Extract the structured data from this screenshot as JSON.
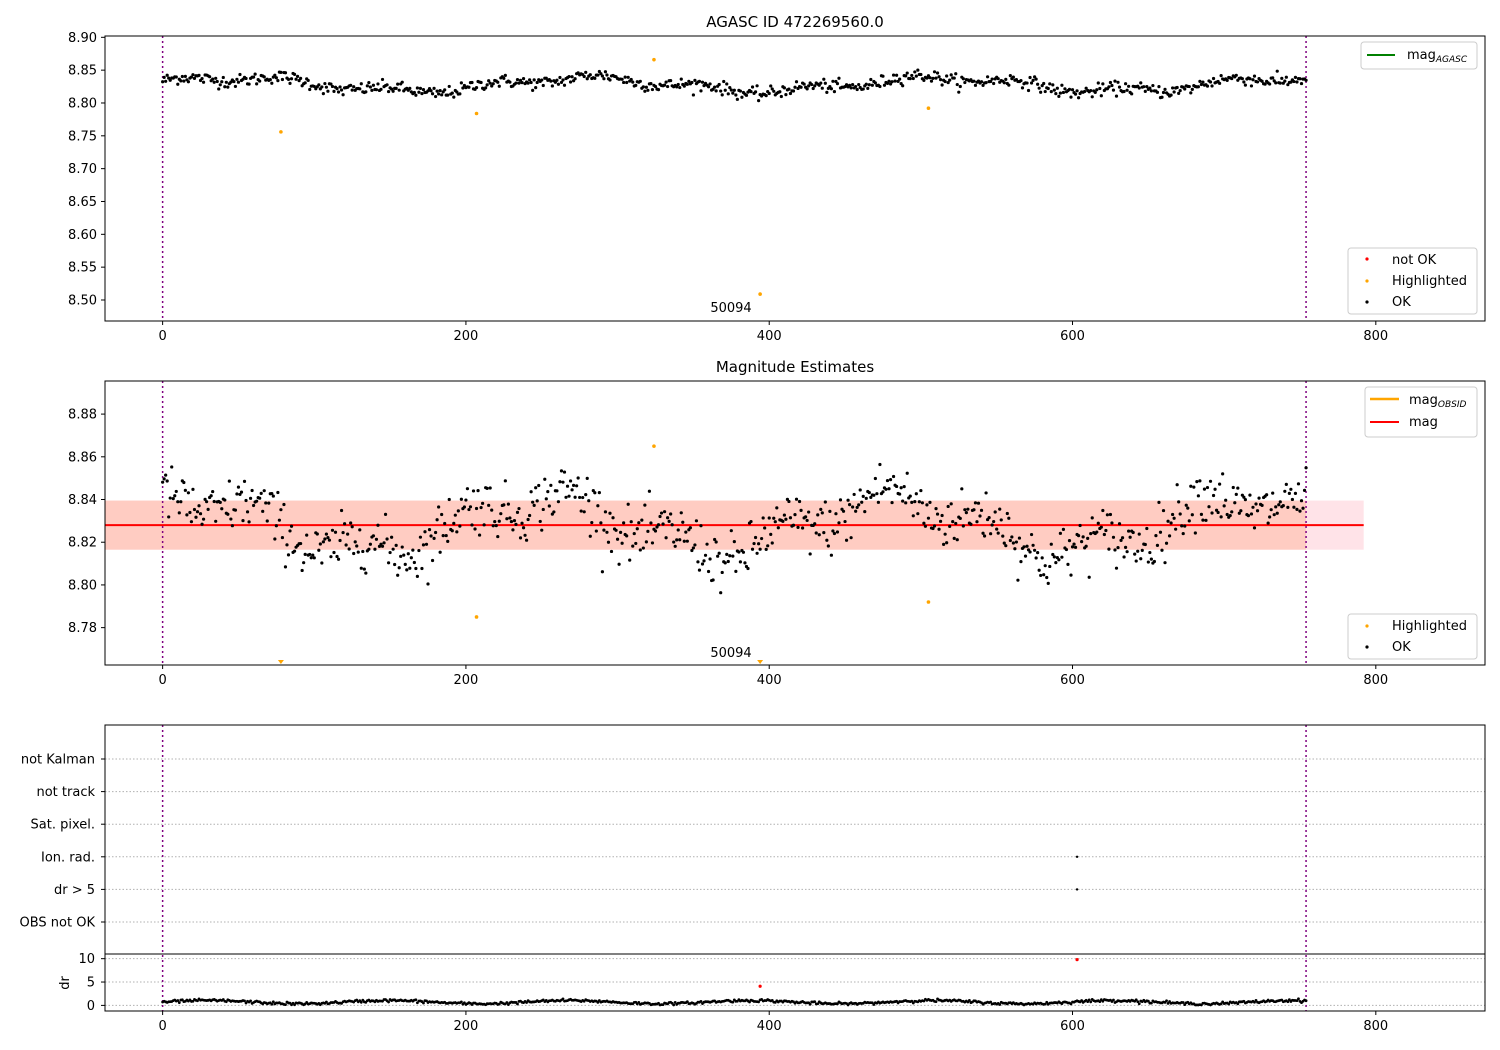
{
  "figure": {
    "colors": {
      "ok": "#000000",
      "highlighted": "#ffa500",
      "not_ok": "#ff0000",
      "mag_line": "#ff0000",
      "mag_obsid_line": "#ffa500",
      "mag_agasc_line": "#008000",
      "band_outer": "#ffc0cb",
      "band_inner": "#ffa07a",
      "boundary": "#800080"
    }
  },
  "chart_data": [
    {
      "type": "scatter",
      "title": "AGASC ID 472269560.0",
      "xlim": [
        -38,
        872
      ],
      "ylim": [
        8.468,
        8.902
      ],
      "xticks": [
        0,
        200,
        400,
        600,
        800
      ],
      "yticks": [
        8.5,
        8.55,
        8.6,
        8.65,
        8.7,
        8.75,
        8.8,
        8.85,
        8.9
      ],
      "vlines": [
        0,
        754
      ],
      "annotation": {
        "text": "50094",
        "x": 394,
        "y": 8.49
      },
      "legend_lines": [
        {
          "label": "mag",
          "sub": "AGASC",
          "color": "#008000"
        }
      ],
      "legend_points": [
        {
          "label": "not OK",
          "color": "#ff0000"
        },
        {
          "label": "Highlighted",
          "color": "#ffa500"
        },
        {
          "label": "OK",
          "color": "#000000"
        }
      ],
      "series": {
        "ok": {
          "n": 755,
          "base": 8.828,
          "amp": 0.01,
          "noise": 0.006
        },
        "highlighted": [
          [
            78,
            8.756
          ],
          [
            207,
            8.784
          ],
          [
            324,
            8.866
          ],
          [
            394,
            8.509
          ],
          [
            505,
            8.792
          ]
        ]
      }
    },
    {
      "type": "scatter",
      "title": "Magnitude Estimates",
      "xlim": [
        -38,
        872
      ],
      "ylim": [
        8.7625,
        8.8955
      ],
      "xticks": [
        0,
        200,
        400,
        600,
        800
      ],
      "yticks": [
        8.78,
        8.8,
        8.82,
        8.84,
        8.86,
        8.88
      ],
      "vlines": [
        0,
        754
      ],
      "annotation": {
        "text": "50094",
        "x": 394,
        "y": 8.765
      },
      "mag": 8.828,
      "band_outer": [
        8.8165,
        8.8395
      ],
      "band_inner": [
        8.8165,
        8.8395
      ],
      "band_outer_xmax": 792,
      "band_inner_xmax": 754,
      "legend_lines": [
        {
          "label": "mag",
          "sub": "OBSID",
          "color": "#ffa500"
        },
        {
          "label": "mag",
          "sub": "",
          "color": "#ff0000"
        }
      ],
      "legend_points": [
        {
          "label": "Highlighted",
          "color": "#ffa500"
        },
        {
          "label": "OK",
          "color": "#000000"
        }
      ],
      "series": {
        "ok": {
          "n": 755,
          "base": 8.828,
          "amp": 0.012,
          "noise": 0.008
        },
        "highlighted": [
          [
            207,
            8.785
          ],
          [
            324,
            8.865
          ],
          [
            505,
            8.792
          ]
        ],
        "off_scale": [
          78,
          394
        ]
      }
    },
    {
      "type": "scatter",
      "title": "",
      "xlim": [
        -38,
        872
      ],
      "xticks": [
        0,
        200,
        400,
        600,
        800
      ],
      "vlines": [
        0,
        754
      ],
      "flag_labels": [
        "not Kalman",
        "not track",
        "Sat. pixel.",
        "Ion. rad.",
        "dr > 5",
        "OBS not OK"
      ],
      "flag_points": [
        {
          "flag": "Ion. rad.",
          "x": 603
        },
        {
          "flag": "dr > 5",
          "x": 603
        }
      ],
      "dr": {
        "ylabel": "dr",
        "ylim": [
          -1.2,
          11
        ],
        "yticks": [
          0,
          5,
          10
        ],
        "ok": {
          "n": 755,
          "base": 0.7
        },
        "not_ok": [
          [
            394,
            4.1
          ],
          [
            603,
            9.8
          ]
        ]
      }
    }
  ]
}
